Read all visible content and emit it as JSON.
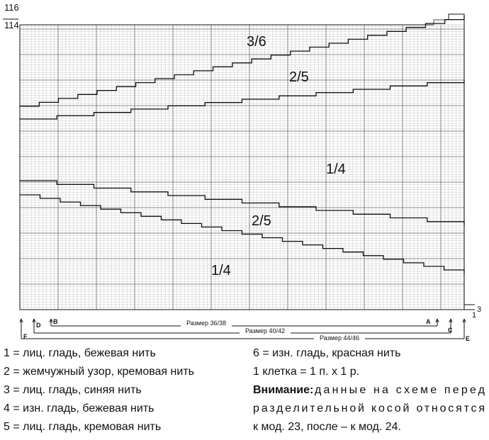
{
  "row_labels": [
    "116",
    "114",
    "3",
    "1"
  ],
  "zones": [
    "3/6",
    "2/5",
    "1/4",
    "2/5",
    "1/4"
  ],
  "markers": [
    "A",
    "B",
    "C",
    "D",
    "E",
    "F"
  ],
  "sizes": [
    "Размер 36/38",
    "Размер 40/42",
    "Размер 44/46"
  ],
  "legend": [
    "1 = лиц. гладь, бежевая нить",
    "2 = жемчужный узор, кремовая нить",
    "3 = лиц. гладь, синяя нить",
    "4 = изн. гладь, бежевая нить",
    "5 = лиц. гладь, кремовая нить",
    "6 = изн. гладь, красная нить",
    "1 клетка = 1 п. х 1 р."
  ],
  "note": {
    "label": "Внимание:",
    "lines": [
      "данные на схеме перед",
      "разделительной косой относятся",
      "к мод. 23, после – к мод. 24."
    ]
  }
}
